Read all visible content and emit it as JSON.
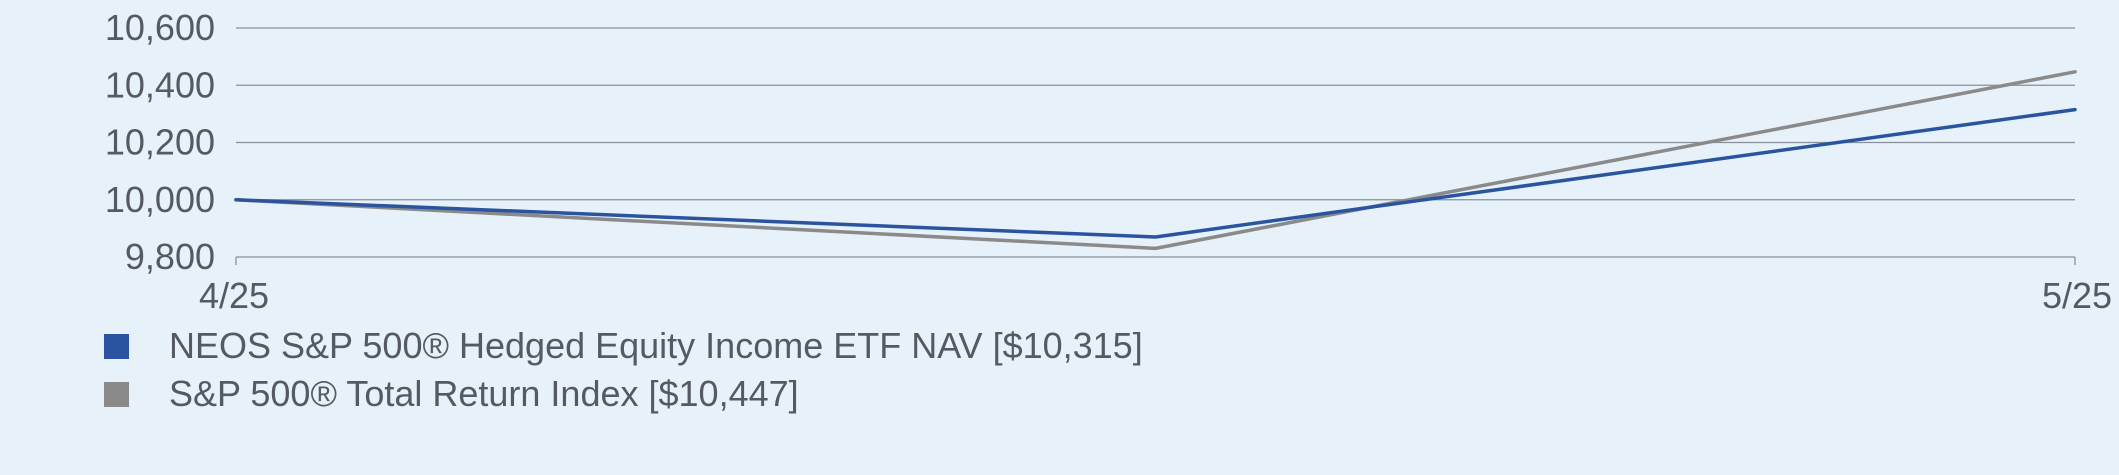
{
  "chart_data": {
    "type": "line",
    "x": [
      "4/25",
      "",
      "5/25"
    ],
    "x_tick_labels": [
      "4/25",
      "5/25"
    ],
    "y_tick_labels": [
      "10,600",
      "10,400",
      "10,200",
      "10,000",
      "9,800"
    ],
    "ylim": [
      9800,
      10600
    ],
    "grid": true,
    "legend_position": "bottom-left",
    "series": [
      {
        "name": "NEOS S&P 500® Hedged Equity Income ETF NAV [$10,315]",
        "values": [
          10000,
          9870,
          10315
        ],
        "color": "#2b54a0"
      },
      {
        "name": "S&P 500® Total Return Index [$10,447]",
        "values": [
          10000,
          9830,
          10447
        ],
        "color": "#8a8a8a"
      }
    ]
  },
  "colors": {
    "background": "#e6f1fa",
    "grid": "#8a9099",
    "text": "#555a60"
  }
}
